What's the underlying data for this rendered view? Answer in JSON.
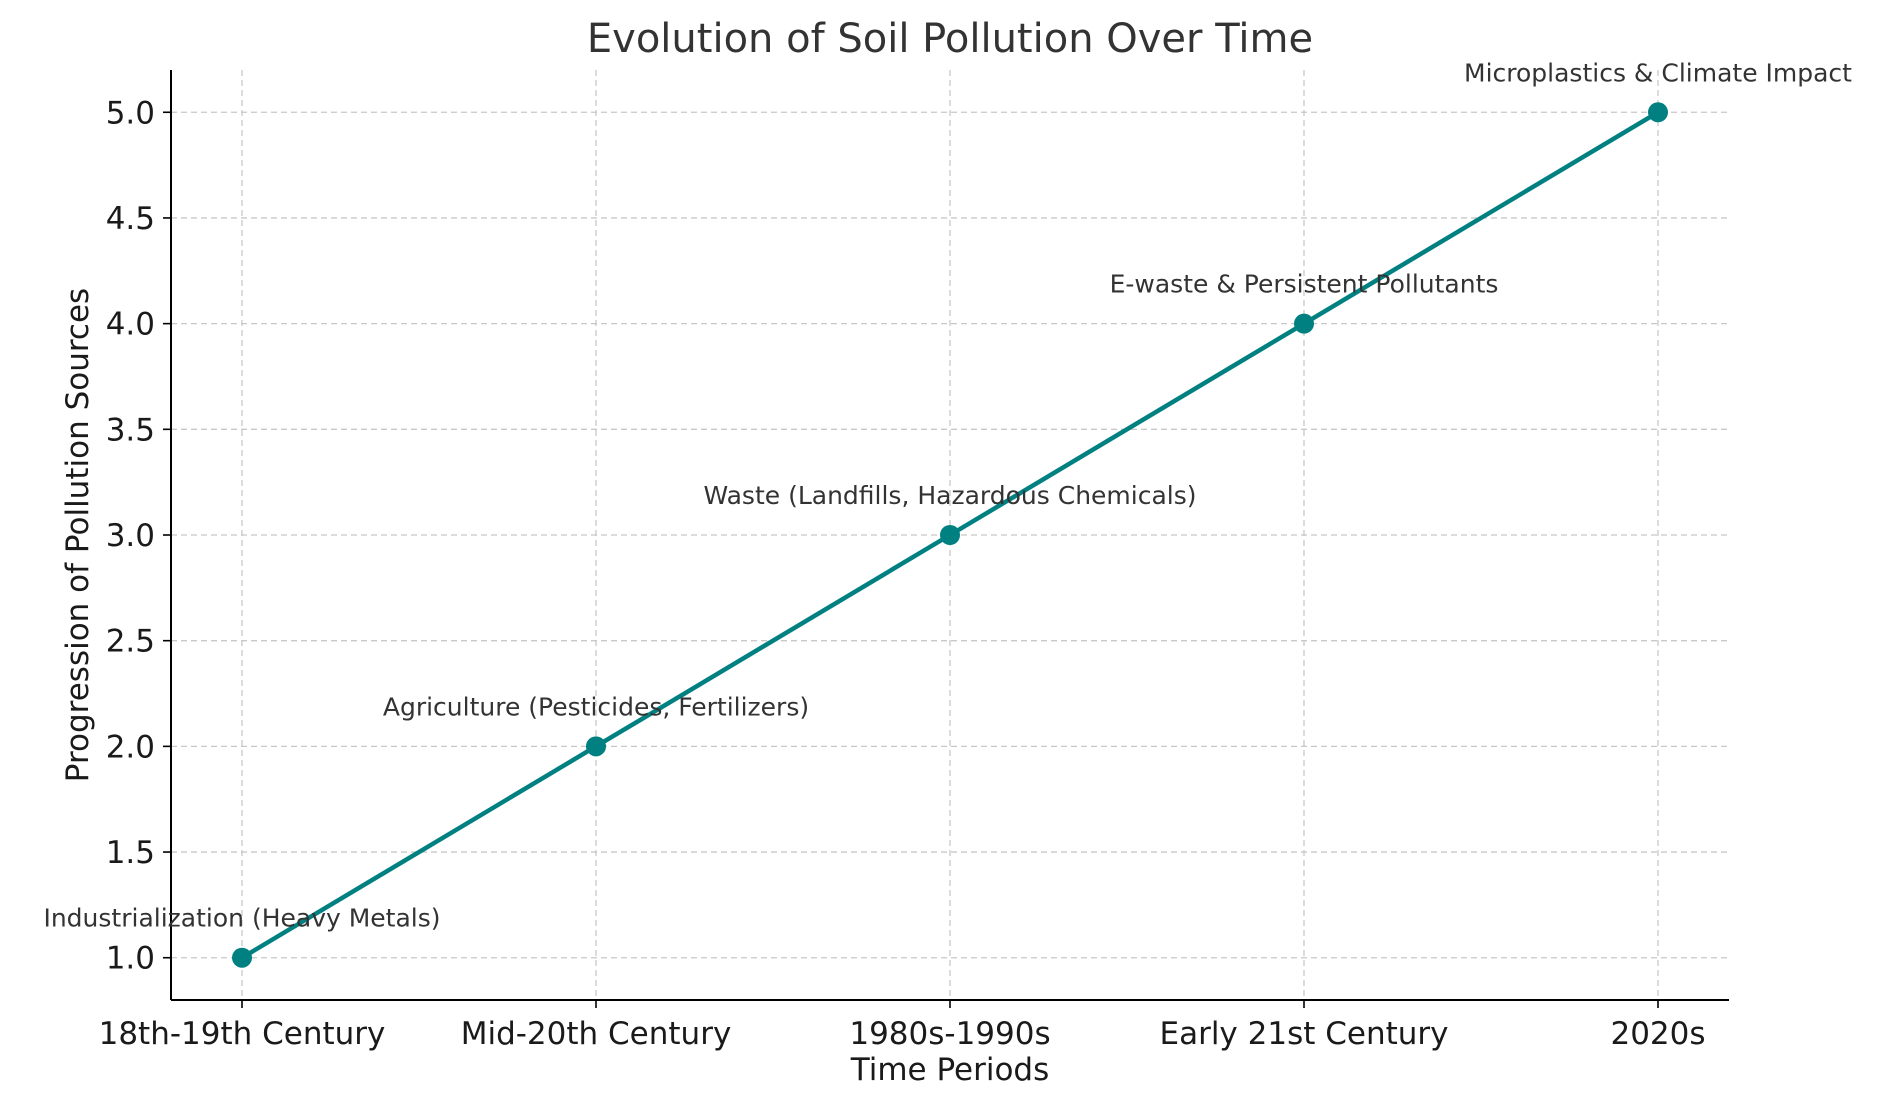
{
  "chart_data": {
    "type": "line",
    "title": "Evolution of Soil Pollution Over Time",
    "xlabel": "Time Periods",
    "ylabel": "Progression of Pollution Sources",
    "categories": [
      "18th-19th Century",
      "Mid-20th Century",
      "1980s-1990s",
      "Early 21st Century",
      "2020s"
    ],
    "series": [
      {
        "values": [
          1,
          2,
          3,
          4,
          5
        ]
      }
    ],
    "annotations": [
      "Industrialization (Heavy Metals)",
      "Agriculture (Pesticides, Fertilizers)",
      "Waste (Landfills, Hazardous Chemicals)",
      "E-waste & Persistent Pollutants",
      "Microplastics & Climate Impact"
    ],
    "ylim": [
      0.8,
      5.2
    ],
    "yticks": [
      "1.0",
      "1.5",
      "2.0",
      "2.5",
      "3.0",
      "3.5",
      "4.0",
      "4.5",
      "5.0"
    ],
    "grid": true,
    "line_color": "#008080",
    "marker": "circle"
  }
}
